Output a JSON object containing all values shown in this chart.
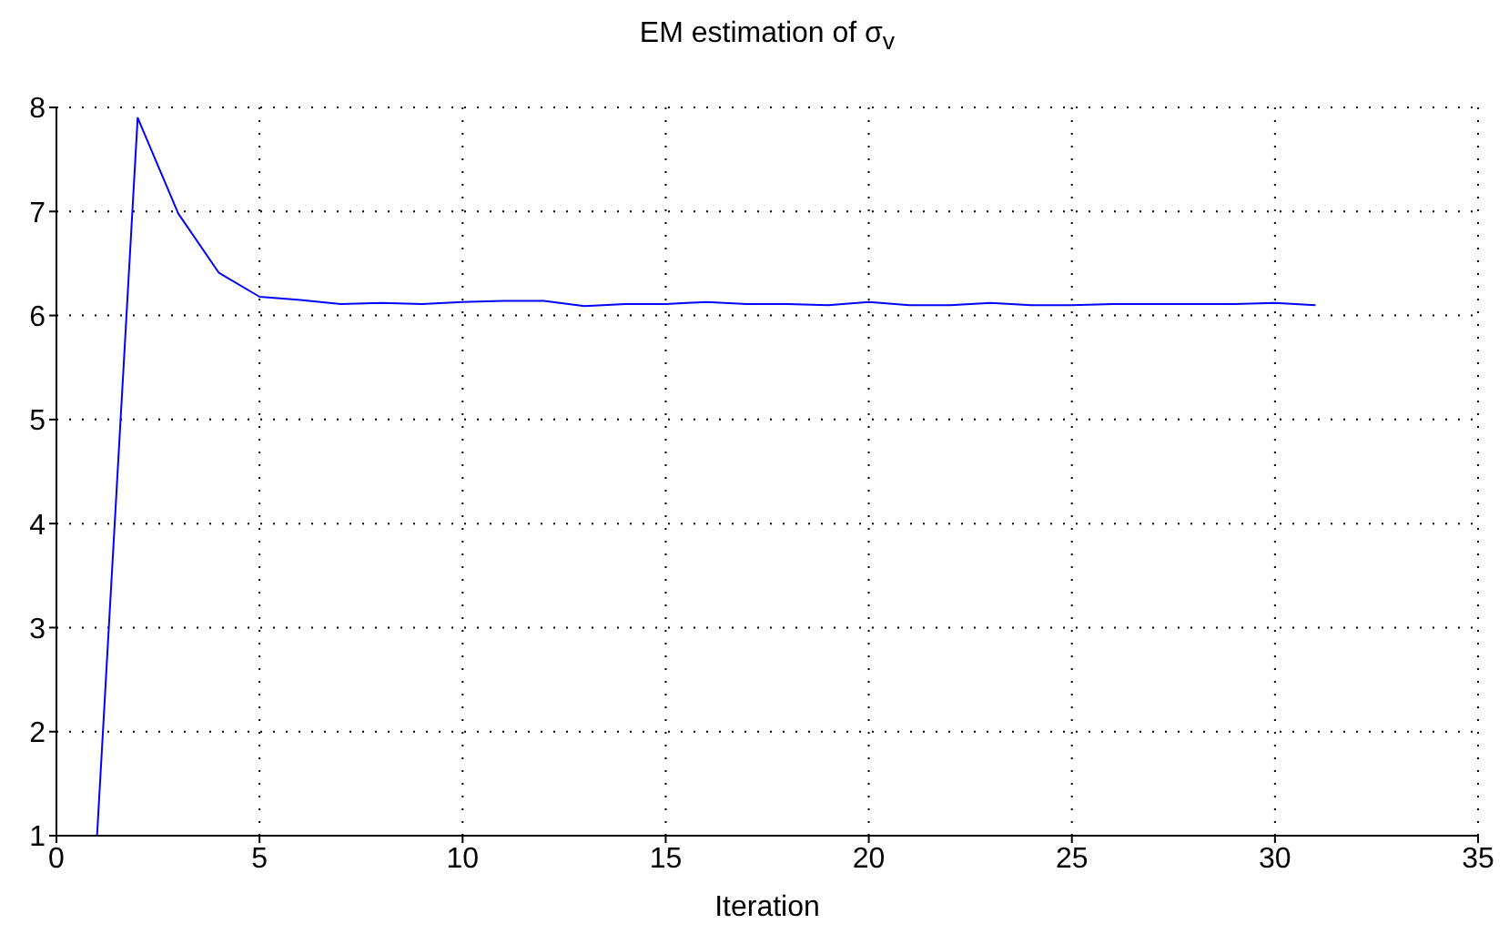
{
  "chart_data": {
    "type": "line",
    "title": "EM estimation of σ$_{v}$",
    "xlabel": "Iteration",
    "x": [
      1,
      2,
      3,
      4,
      5,
      6,
      7,
      8,
      9,
      10,
      11,
      12,
      13,
      14,
      15,
      16,
      17,
      18,
      19,
      20,
      21,
      22,
      23,
      24,
      25,
      26,
      27,
      28,
      29,
      30,
      31
    ],
    "series": [
      {
        "color": "#0000ff",
        "values": [
          1.0,
          7.9,
          6.98,
          6.41,
          6.18,
          6.15,
          6.11,
          6.12,
          6.11,
          6.13,
          6.14,
          6.14,
          6.09,
          6.11,
          6.11,
          6.13,
          6.11,
          6.11,
          6.1,
          6.13,
          6.1,
          6.1,
          6.12,
          6.1,
          6.1,
          6.11,
          6.11,
          6.11,
          6.11,
          6.12,
          6.1
        ]
      }
    ],
    "xlim": [
      0,
      35
    ],
    "xticks": [
      0,
      5,
      10,
      15,
      20,
      25,
      30,
      35
    ],
    "ylim": [
      1,
      8
    ],
    "yticks": [
      1,
      2,
      3,
      4,
      5,
      6,
      7,
      8
    ],
    "grid": true,
    "legend": false,
    "marker": "none",
    "line_style": "solid"
  }
}
